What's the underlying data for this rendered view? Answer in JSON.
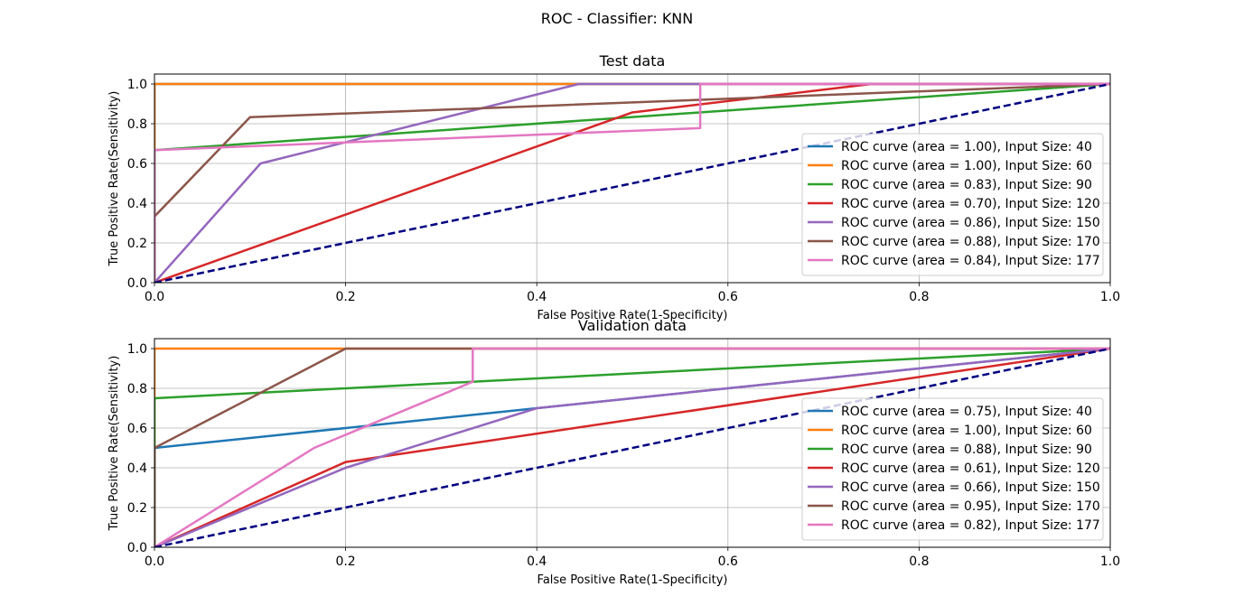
{
  "figure": {
    "suptitle": "ROC - Classifier: KNN"
  },
  "colors": {
    "diagonal": "#000080",
    "grid": "#b0b0b0",
    "series": [
      "#1f77b4",
      "#ff7f0e",
      "#2ca02c",
      "#d62728",
      "#9467bd",
      "#8c564b",
      "#e377c2"
    ]
  },
  "chart_data": [
    {
      "type": "line",
      "title": "Test data",
      "xlabel": "False Positive Rate(1-Specificity)",
      "ylabel": "True Positive Rate(Sensitivity)",
      "xlim": [
        0,
        1
      ],
      "ylim": [
        0,
        1.05
      ],
      "xticks": [
        "0.0",
        "0.2",
        "0.4",
        "0.6",
        "0.8",
        "1.0"
      ],
      "yticks": [
        "0.0",
        "0.2",
        "0.4",
        "0.6",
        "0.8",
        "1.0"
      ],
      "grid": true,
      "legend_position": "lower right",
      "diagonal": {
        "x": [
          0,
          1
        ],
        "y": [
          0,
          1
        ],
        "style": "dashed"
      },
      "series": [
        {
          "name": "ROC curve (area = 1.00), Input Size: 40",
          "x": [
            0,
            0,
            1
          ],
          "y": [
            0,
            1,
            1
          ]
        },
        {
          "name": "ROC curve (area = 1.00), Input Size: 60",
          "x": [
            0,
            0,
            1
          ],
          "y": [
            0,
            1,
            1
          ]
        },
        {
          "name": "ROC curve (area = 0.83), Input Size: 90",
          "x": [
            0,
            0,
            1
          ],
          "y": [
            0,
            0.667,
            1
          ]
        },
        {
          "name": "ROC curve (area = 0.70), Input Size: 120",
          "x": [
            0,
            0.5,
            0.75,
            1
          ],
          "y": [
            0,
            0.857,
            1,
            1
          ]
        },
        {
          "name": "ROC curve (area = 0.86), Input Size: 150",
          "x": [
            0,
            0.111,
            0.444,
            1
          ],
          "y": [
            0,
            0.6,
            1,
            1
          ]
        },
        {
          "name": "ROC curve (area = 0.88), Input Size: 170",
          "x": [
            0,
            0,
            0.1,
            1
          ],
          "y": [
            0,
            0.333,
            0.833,
            1
          ]
        },
        {
          "name": "ROC curve (area = 0.84), Input Size: 177",
          "x": [
            0,
            0,
            0.571,
            0.571,
            1
          ],
          "y": [
            0,
            0.667,
            0.778,
            1,
            1
          ]
        }
      ]
    },
    {
      "type": "line",
      "title": "Validation data",
      "xlabel": "False Positive Rate(1-Specificity)",
      "ylabel": "True Positive Rate(Sensitivity)",
      "xlim": [
        0,
        1
      ],
      "ylim": [
        0,
        1.05
      ],
      "xticks": [
        "0.0",
        "0.2",
        "0.4",
        "0.6",
        "0.8",
        "1.0"
      ],
      "yticks": [
        "0.0",
        "0.2",
        "0.4",
        "0.6",
        "0.8",
        "1.0"
      ],
      "grid": true,
      "legend_position": "lower right",
      "diagonal": {
        "x": [
          0,
          1
        ],
        "y": [
          0,
          1
        ],
        "style": "dashed"
      },
      "series": [
        {
          "name": "ROC curve (area = 0.75), Input Size: 40",
          "x": [
            0,
            0,
            0.2,
            0.4,
            1
          ],
          "y": [
            0,
            0.5,
            0.6,
            0.7,
            1
          ]
        },
        {
          "name": "ROC curve (area = 1.00), Input Size: 60",
          "x": [
            0,
            0,
            1
          ],
          "y": [
            0,
            1,
            1
          ]
        },
        {
          "name": "ROC curve (area = 0.88), Input Size: 90",
          "x": [
            0,
            0,
            1
          ],
          "y": [
            0,
            0.75,
            1
          ]
        },
        {
          "name": "ROC curve (area = 0.61), Input Size: 120",
          "x": [
            0,
            0.2,
            1
          ],
          "y": [
            0,
            0.429,
            1
          ]
        },
        {
          "name": "ROC curve (area = 0.66), Input Size: 150",
          "x": [
            0,
            0.2,
            0.4,
            1
          ],
          "y": [
            0,
            0.4,
            0.7,
            1
          ]
        },
        {
          "name": "ROC curve (area = 0.95), Input Size: 170",
          "x": [
            0,
            0,
            0.2,
            1
          ],
          "y": [
            0,
            0.5,
            1,
            1
          ]
        },
        {
          "name": "ROC curve (area = 0.82), Input Size: 177",
          "x": [
            0,
            0.167,
            0.333,
            0.333,
            1
          ],
          "y": [
            0,
            0.5,
            0.833,
            1,
            1
          ]
        }
      ]
    }
  ]
}
